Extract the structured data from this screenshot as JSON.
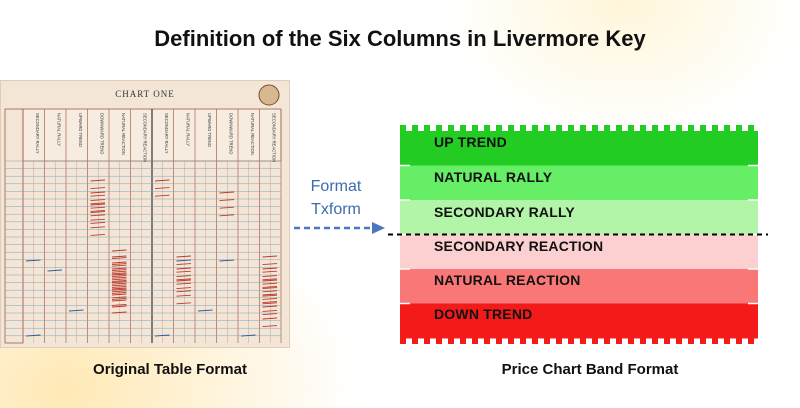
{
  "title": "Definition of the Six Columns in Livermore Key",
  "left_caption": "Original Table Format",
  "right_caption": "Price Chart Band Format",
  "arrow_label_line1": "Format",
  "arrow_label_line2": "Txform",
  "ledger": {
    "chart_title": "CHART ONE",
    "column_headers": [
      "SECONDARY RALLY",
      "NATURAL RALLY",
      "UPWARD TREND",
      "DOWNWARD TREND",
      "NATURAL REACTION",
      "SECONDARY REACTION",
      "SECONDARY RALLY",
      "NATURAL RALLY",
      "UPWARD TREND",
      "DOWNWARD TREND",
      "NATURAL REACTION",
      "SECONDARY REACTION"
    ]
  },
  "bands": [
    {
      "label": "UP TREND",
      "color": "#22cc22"
    },
    {
      "label": "NATURAL RALLY",
      "color": "#66ee66"
    },
    {
      "label": "SECONDARY RALLY",
      "color": "#b3f5a8"
    },
    {
      "label": "SECONDARY REACTION",
      "color": "#fcd0d0"
    },
    {
      "label": "NATURAL REACTION",
      "color": "#f97777"
    },
    {
      "label": "DOWN TREND",
      "color": "#f51a1a"
    }
  ]
}
